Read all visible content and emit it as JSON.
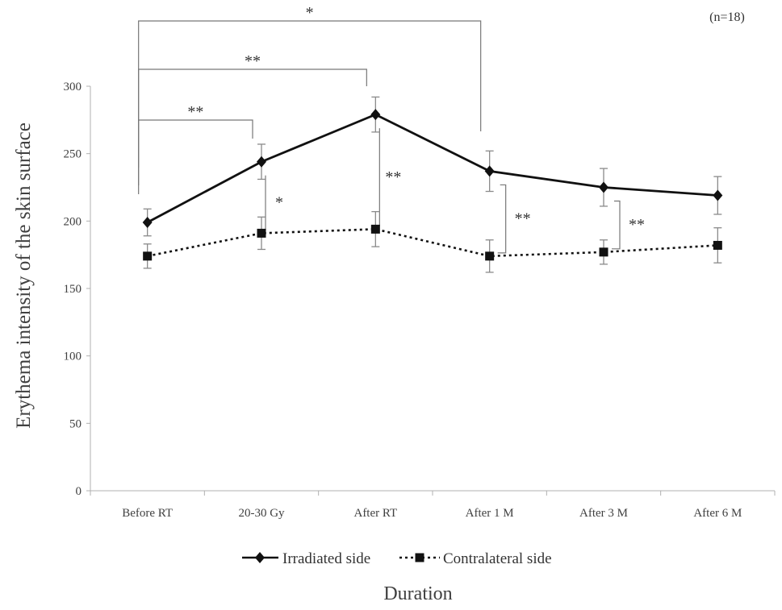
{
  "chart_data": {
    "type": "line",
    "title": "",
    "note": "(n=18)",
    "xlabel": "Duration",
    "ylabel": "Erythema intensity of the skin surface",
    "ylim": [
      0,
      300
    ],
    "yticks": [
      0,
      50,
      100,
      150,
      200,
      250,
      300
    ],
    "grid": false,
    "legend_position": "bottom",
    "categories": [
      "Before RT",
      "20-30 Gy",
      "After RT",
      "After 1 M",
      "After 3 M",
      "After 6 M"
    ],
    "series": [
      {
        "name": "Irradiated side",
        "style": "solid",
        "marker": "diamond",
        "color": "#111111",
        "values": [
          199,
          244,
          279,
          237,
          225,
          219
        ],
        "error": [
          10,
          13,
          13,
          15,
          14,
          14
        ]
      },
      {
        "name": "Contralateral side",
        "style": "dotted",
        "marker": "square",
        "color": "#111111",
        "values": [
          174,
          191,
          194,
          174,
          177,
          182
        ],
        "error": [
          9,
          12,
          13,
          12,
          9,
          13
        ]
      }
    ],
    "significance": [
      {
        "between": [
          "Before RT",
          "After 1 M"
        ],
        "label": "*"
      },
      {
        "between": [
          "Before RT",
          "After RT"
        ],
        "label": "**"
      },
      {
        "between": [
          "Before RT",
          "20-30 Gy"
        ],
        "label": "**"
      },
      {
        "at": "20-30 Gy",
        "label": "*"
      },
      {
        "at": "After RT",
        "label": "**"
      },
      {
        "at": "After 1 M",
        "label": "**"
      },
      {
        "at": "After 3 M",
        "label": "**"
      }
    ]
  }
}
